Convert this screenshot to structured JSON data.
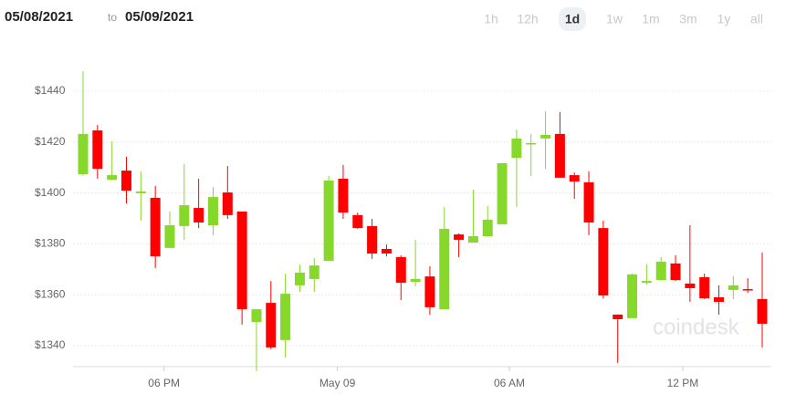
{
  "header": {
    "from_date": "05/08/2021",
    "separator": "to",
    "to_date": "05/09/2021"
  },
  "range_buttons": [
    "1h",
    "12h",
    "1d",
    "1w",
    "1m",
    "3m",
    "1y",
    "all"
  ],
  "selected_range_index": 2,
  "watermark": "coindesk",
  "chart_data": {
    "type": "candlestick",
    "up_color": "#86d92a",
    "down_color": "#ff0000",
    "grid": true,
    "open": [
      1407.4,
      1424.6,
      1405.2,
      1408.8,
      1399.9,
      1398.1,
      1378.4,
      1387.0,
      1394.1,
      1387.3,
      1400.2,
      1392.7,
      1349.3,
      1356.8,
      1342.2,
      1363.7,
      1366.2,
      1373.3,
      1405.6,
      1391.3,
      1387.0,
      1378.0,
      1374.8,
      1365.1,
      1367.2,
      1354.3,
      1383.7,
      1380.5,
      1383.0,
      1387.7,
      1413.8,
      1419.2,
      1421.4,
      1423.2,
      1407.0,
      1404.2,
      1386.2,
      1352.2,
      1350.8,
      1364.7,
      1365.8,
      1372.3,
      1364.4,
      1366.9,
      1359.0,
      1361.9,
      1362.2,
      1358.3
    ],
    "high": [
      1447.9,
      1426.7,
      1420.3,
      1414.2,
      1408.5,
      1402.7,
      1392.7,
      1411.3,
      1405.6,
      1402.4,
      1410.6,
      1392.7,
      1354.3,
      1365.4,
      1368.3,
      1371.9,
      1374.4,
      1406.7,
      1411.0,
      1392.3,
      1389.8,
      1379.8,
      1375.5,
      1381.6,
      1371.2,
      1394.5,
      1384.1,
      1401.3,
      1394.8,
      1411.7,
      1424.9,
      1423.2,
      1432.1,
      1431.8,
      1408.1,
      1408.5,
      1389.1,
      1352.2,
      1368.3,
      1371.9,
      1374.8,
      1375.5,
      1387.3,
      1368.3,
      1363.7,
      1367.2,
      1366.5,
      1376.6
    ],
    "low": [
      1406.7,
      1405.6,
      1404.9,
      1395.9,
      1389.1,
      1370.5,
      1378.4,
      1381.6,
      1386.2,
      1383.4,
      1389.8,
      1348.2,
      1330.0,
      1338.6,
      1335.3,
      1361.1,
      1361.1,
      1373.3,
      1389.8,
      1385.9,
      1374.1,
      1375.1,
      1357.9,
      1363.3,
      1352.2,
      1354.3,
      1374.8,
      1380.5,
      1382.7,
      1387.7,
      1394.5,
      1406.7,
      1409.5,
      1406.0,
      1397.7,
      1383.4,
      1358.6,
      1333.2,
      1350.8,
      1364.0,
      1365.4,
      1365.4,
      1357.2,
      1358.3,
      1352.2,
      1358.3,
      1360.7,
      1339.3
    ],
    "close": [
      1423.2,
      1409.5,
      1407.0,
      1400.9,
      1400.6,
      1375.1,
      1387.3,
      1395.2,
      1388.4,
      1398.4,
      1391.3,
      1354.3,
      1354.3,
      1339.3,
      1360.4,
      1368.7,
      1371.5,
      1404.9,
      1392.3,
      1386.2,
      1376.2,
      1376.2,
      1364.7,
      1366.2,
      1355.1,
      1385.9,
      1381.6,
      1383.0,
      1389.5,
      1411.7,
      1421.4,
      1419.6,
      1422.8,
      1406.0,
      1404.5,
      1388.4,
      1359.7,
      1350.4,
      1368.0,
      1365.4,
      1373.0,
      1365.8,
      1362.6,
      1358.6,
      1357.2,
      1363.7,
      1361.9,
      1348.6
    ],
    "ylim": [
      1326,
      1462
    ],
    "yticks": [
      {
        "value": 1340,
        "label": "$1340"
      },
      {
        "value": 1360,
        "label": "$1360"
      },
      {
        "value": 1380,
        "label": "$1380"
      },
      {
        "value": 1400,
        "label": "$1400"
      },
      {
        "value": 1420,
        "label": "$1420"
      },
      {
        "value": 1440,
        "label": "$1440"
      }
    ],
    "xlim": [
      -1,
      48
    ],
    "xticks": [
      {
        "value": 5.6,
        "label": "06 PM"
      },
      {
        "value": 17.6,
        "label": "May 09"
      },
      {
        "value": 29.5,
        "label": "06 AM"
      },
      {
        "value": 41.5,
        "label": "12 PM"
      }
    ]
  }
}
